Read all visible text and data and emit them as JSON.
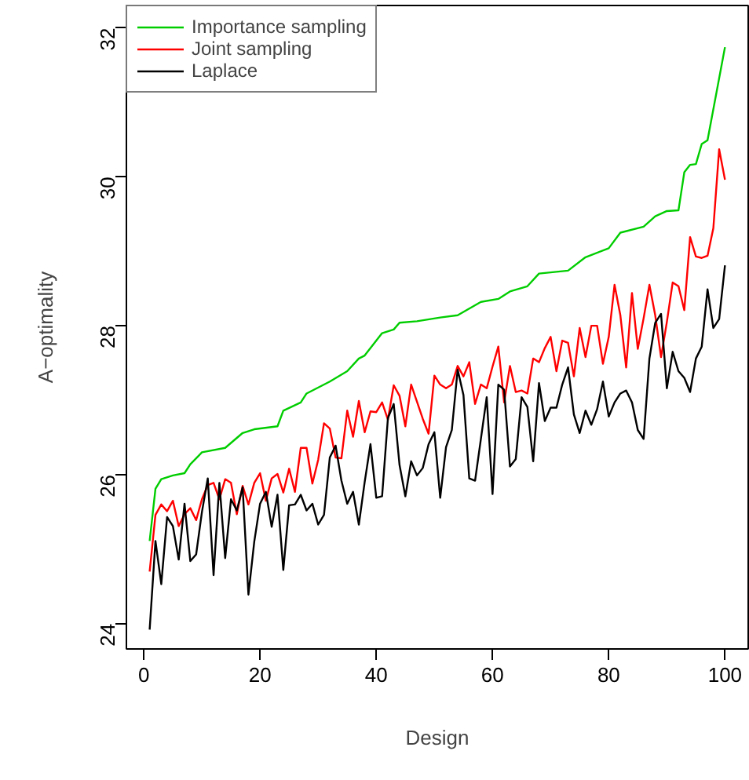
{
  "chart_data": {
    "type": "line",
    "xlabel": "Design",
    "ylabel": "A−optimality",
    "xlim": [
      -3,
      104
    ],
    "ylim": [
      23.66,
      32.3
    ],
    "xticks": [
      0,
      20,
      40,
      60,
      80,
      100
    ],
    "yticks": [
      24,
      26,
      28,
      30,
      32
    ],
    "grid": false,
    "legend": "top left",
    "marker": "none",
    "line_style": "solid",
    "series": [
      {
        "name": "Importance sampling",
        "color": "#00cd00",
        "x": [
          1,
          2,
          3,
          5,
          7,
          8,
          10,
          14,
          17,
          19,
          23,
          24,
          27,
          28,
          32,
          35,
          37,
          38,
          41,
          43,
          44,
          47,
          51,
          54,
          58,
          61,
          63,
          66,
          68,
          73,
          76,
          80,
          82,
          86,
          88,
          90,
          92,
          93,
          94,
          95,
          96,
          97,
          100
        ],
        "values": [
          25.11,
          25.81,
          25.94,
          25.99,
          26.02,
          26.14,
          26.3,
          26.36,
          26.56,
          26.61,
          26.65,
          26.86,
          26.97,
          27.09,
          27.25,
          27.39,
          27.56,
          27.6,
          27.9,
          27.95,
          28.04,
          28.06,
          28.11,
          28.14,
          28.32,
          28.36,
          28.46,
          28.53,
          28.7,
          28.74,
          28.92,
          29.04,
          29.25,
          29.33,
          29.47,
          29.54,
          29.55,
          30.06,
          30.16,
          30.17,
          30.44,
          30.49,
          31.74
        ]
      },
      {
        "name": "Joint sampling",
        "color": "#ff0000",
        "x": [
          1,
          2,
          3,
          4,
          5,
          6,
          7,
          8,
          9,
          10,
          11,
          12,
          13,
          14,
          15,
          16,
          17,
          18,
          19,
          20,
          21,
          22,
          23,
          24,
          25,
          26,
          27,
          28,
          29,
          30,
          31,
          32,
          33,
          34,
          35,
          36,
          37,
          38,
          39,
          40,
          41,
          42,
          43,
          44,
          45,
          46,
          47,
          48,
          49,
          50,
          51,
          52,
          53,
          54,
          55,
          56,
          57,
          58,
          59,
          60,
          61,
          62,
          63,
          64,
          65,
          66,
          67,
          68,
          69,
          70,
          71,
          72,
          73,
          74,
          75,
          76,
          77,
          78,
          79,
          80,
          81,
          82,
          83,
          84,
          85,
          86,
          87,
          88,
          89,
          90,
          91,
          92,
          93,
          94,
          95,
          96,
          97,
          98,
          99,
          100
        ],
        "values": [
          24.7,
          25.46,
          25.6,
          25.51,
          25.65,
          25.31,
          25.47,
          25.55,
          25.39,
          25.67,
          25.86,
          25.89,
          25.67,
          25.94,
          25.89,
          25.47,
          25.85,
          25.6,
          25.89,
          26.02,
          25.65,
          25.95,
          26.01,
          25.76,
          26.08,
          25.77,
          26.36,
          26.36,
          25.88,
          26.2,
          26.69,
          26.62,
          26.23,
          26.22,
          26.86,
          26.51,
          26.99,
          26.57,
          26.85,
          26.84,
          26.97,
          26.74,
          27.2,
          27.06,
          26.65,
          27.21,
          26.98,
          26.75,
          26.55,
          27.33,
          27.21,
          27.16,
          27.21,
          27.46,
          27.32,
          27.51,
          26.95,
          27.21,
          27.16,
          27.45,
          27.72,
          26.97,
          27.46,
          27.11,
          27.13,
          27.09,
          27.56,
          27.51,
          27.7,
          27.85,
          27.39,
          27.8,
          27.77,
          27.32,
          27.97,
          27.58,
          28.0,
          28.0,
          27.49,
          27.85,
          28.55,
          28.14,
          27.44,
          28.44,
          27.69,
          28.1,
          28.55,
          28.14,
          27.58,
          28.05,
          28.58,
          28.53,
          28.21,
          29.19,
          28.93,
          28.91,
          28.94,
          29.31,
          30.37,
          29.96
        ]
      },
      {
        "name": "Laplace",
        "color": "#000000",
        "x": [
          1,
          2,
          3,
          4,
          5,
          6,
          7,
          8,
          9,
          10,
          11,
          12,
          13,
          14,
          15,
          16,
          17,
          18,
          19,
          20,
          21,
          22,
          23,
          24,
          25,
          26,
          27,
          28,
          29,
          30,
          31,
          32,
          33,
          34,
          35,
          36,
          37,
          38,
          39,
          40,
          41,
          42,
          43,
          44,
          45,
          46,
          47,
          48,
          49,
          50,
          51,
          52,
          53,
          54,
          55,
          56,
          57,
          58,
          59,
          60,
          61,
          62,
          63,
          64,
          65,
          66,
          67,
          68,
          69,
          70,
          71,
          72,
          73,
          74,
          75,
          76,
          77,
          78,
          79,
          80,
          81,
          82,
          83,
          84,
          85,
          86,
          87,
          88,
          89,
          90,
          91,
          92,
          93,
          94,
          95,
          96,
          97,
          98,
          99,
          100
        ],
        "values": [
          23.92,
          25.11,
          24.53,
          25.43,
          25.31,
          24.86,
          25.61,
          24.84,
          24.93,
          25.5,
          25.95,
          24.65,
          25.89,
          24.88,
          25.67,
          25.52,
          25.83,
          24.39,
          25.1,
          25.61,
          25.77,
          25.3,
          25.73,
          24.72,
          25.59,
          25.6,
          25.73,
          25.52,
          25.61,
          25.33,
          25.46,
          26.23,
          26.39,
          25.92,
          25.61,
          25.77,
          25.33,
          25.9,
          26.41,
          25.69,
          25.71,
          26.76,
          26.95,
          26.13,
          25.71,
          26.18,
          25.99,
          26.09,
          26.41,
          26.57,
          25.69,
          26.37,
          26.6,
          27.41,
          27.07,
          25.95,
          25.92,
          26.48,
          27.04,
          25.74,
          27.21,
          27.14,
          26.11,
          26.21,
          27.04,
          26.91,
          26.18,
          27.23,
          26.72,
          26.9,
          26.9,
          27.21,
          27.44,
          26.81,
          26.56,
          26.86,
          26.67,
          26.88,
          27.25,
          26.78,
          26.97,
          27.09,
          27.13,
          26.97,
          26.6,
          26.48,
          27.56,
          28.04,
          28.16,
          27.16,
          27.65,
          27.39,
          27.3,
          27.11,
          27.56,
          27.72,
          28.49,
          27.97,
          28.09,
          28.81
        ]
      }
    ]
  }
}
